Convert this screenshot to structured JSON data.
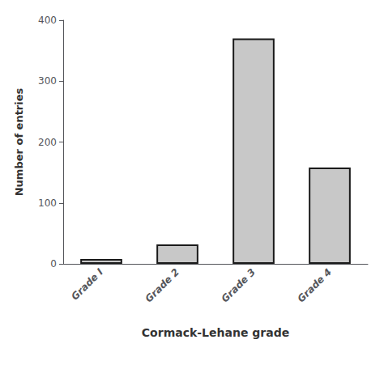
{
  "chart_data": {
    "type": "bar",
    "categories": [
      "Grade I",
      "Grade 2",
      "Grade 3",
      "Grade 4"
    ],
    "values": [
      8,
      32,
      370,
      158
    ],
    "color": "#c8c8c8",
    "xlabel": "Cormack-Lehane grade",
    "ylabel": "Number of entries",
    "ylim": [
      0,
      400
    ],
    "yticks": [
      0,
      100,
      200,
      300,
      400
    ],
    "grid": false
  }
}
